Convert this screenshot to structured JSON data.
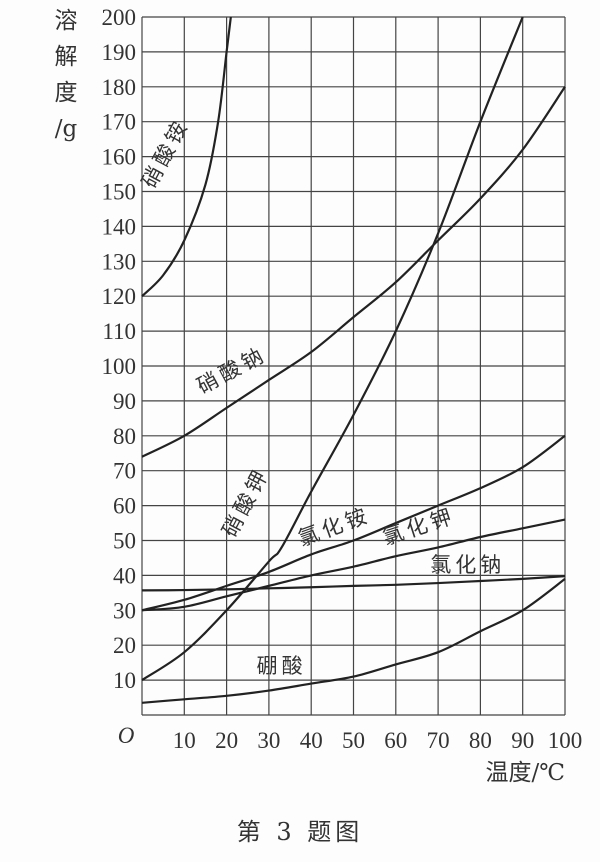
{
  "chart_data": {
    "type": "line",
    "title": "",
    "caption": "第 3 题图",
    "xlabel": "温度/℃",
    "ylabel": [
      "溶",
      "解",
      "度",
      "/g"
    ],
    "origin_label": "O",
    "xlim": [
      0,
      100
    ],
    "ylim": [
      0,
      200
    ],
    "grid": true,
    "x_ticks": [
      10,
      20,
      30,
      40,
      50,
      60,
      70,
      80,
      90,
      100
    ],
    "y_ticks": [
      10,
      20,
      30,
      40,
      50,
      60,
      70,
      80,
      90,
      100,
      110,
      120,
      130,
      140,
      150,
      160,
      170,
      180,
      190,
      200
    ],
    "series": [
      {
        "name": "硝酸铵",
        "x": [
          0,
          5,
          10,
          15,
          18,
          20,
          21
        ],
        "values": [
          120,
          126,
          136,
          152,
          170,
          190,
          200
        ]
      },
      {
        "name": "硝酸钠",
        "x": [
          0,
          10,
          20,
          30,
          40,
          50,
          60,
          70,
          80,
          90,
          100
        ],
        "values": [
          74,
          80,
          88,
          96,
          104,
          114,
          124,
          136,
          148,
          162,
          180
        ]
      },
      {
        "name": "硝酸钾",
        "x": [
          0,
          10,
          20,
          30,
          33,
          40,
          50,
          60,
          70,
          80,
          90
        ],
        "values": [
          10,
          18,
          30,
          44,
          48,
          64,
          86,
          110,
          138,
          170,
          200
        ]
      },
      {
        "name": "氯化铵",
        "x": [
          0,
          10,
          20,
          30,
          40,
          50,
          60,
          70,
          80,
          90,
          100
        ],
        "values": [
          30,
          33,
          37,
          41,
          46,
          50,
          55,
          60,
          65,
          71,
          80
        ]
      },
      {
        "name": "氯化钾",
        "x": [
          0,
          10,
          20,
          30,
          40,
          50,
          60,
          70,
          80,
          90,
          100
        ],
        "values": [
          30,
          31,
          34,
          37,
          40,
          42.5,
          45.5,
          48,
          51,
          53.5,
          56
        ]
      },
      {
        "name": "氯化钠",
        "x": [
          0,
          10,
          20,
          30,
          40,
          50,
          60,
          70,
          80,
          90,
          100
        ],
        "values": [
          35.7,
          35.8,
          36,
          36.3,
          36.6,
          37,
          37.3,
          37.8,
          38.4,
          39,
          39.8
        ]
      },
      {
        "name": "硼酸",
        "x": [
          0,
          10,
          20,
          30,
          40,
          50,
          60,
          70,
          80,
          90,
          100
        ],
        "values": [
          3.5,
          4.5,
          5.5,
          7,
          9,
          11,
          14.5,
          18,
          24,
          30,
          39
        ]
      }
    ],
    "curve_labels": [
      {
        "text": "硝酸铵",
        "x": 7,
        "y": 160,
        "angle": -62
      },
      {
        "text": "硝酸钠",
        "x": 22,
        "y": 97,
        "angle": -28
      },
      {
        "text": "硝酸钾",
        "x": 26,
        "y": 60,
        "angle": -62
      },
      {
        "text": "氯化铵",
        "x": 46,
        "y": 52,
        "angle": -20
      },
      {
        "text": "氯化钾",
        "x": 66,
        "y": 52,
        "angle": -18
      },
      {
        "text": "氯化钠",
        "x": 77,
        "y": 41,
        "angle": 0
      },
      {
        "text": "硼酸",
        "x": 33,
        "y": 12,
        "angle": 0
      }
    ]
  }
}
